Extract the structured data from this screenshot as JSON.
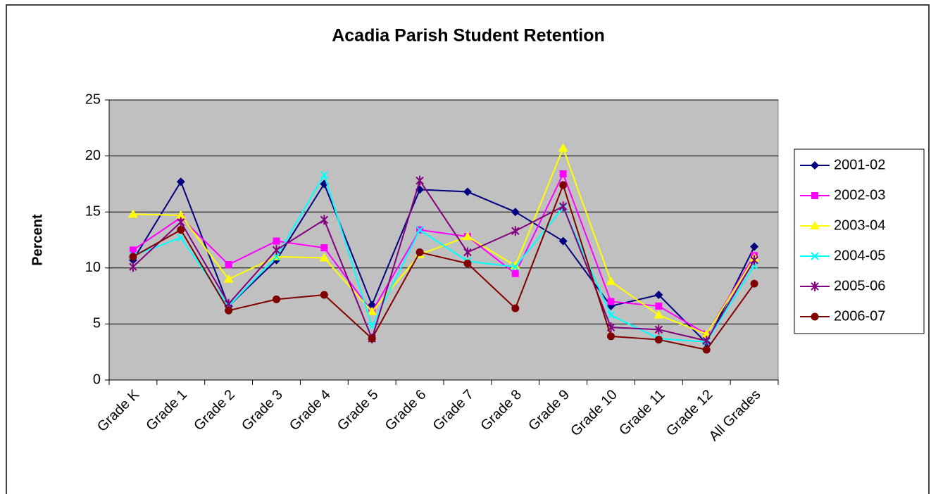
{
  "chart_data": {
    "type": "line",
    "title": "Acadia Parish Student Retention",
    "ylabel": "Percent",
    "categories": [
      "Grade K",
      "Grade 1",
      "Grade 2",
      "Grade 3",
      "Grade 4",
      "Grade 5",
      "Grade 6",
      "Grade 7",
      "Grade 8",
      "Grade 9",
      "Grade 10",
      "Grade 11",
      "Grade 12",
      "All Grades"
    ],
    "series": [
      {
        "name": "2001-02",
        "color": "#000080",
        "values": [
          10.7,
          17.7,
          6.6,
          10.7,
          17.5,
          6.7,
          17.0,
          16.8,
          15.0,
          12.4,
          6.6,
          7.6,
          3.3,
          11.9
        ]
      },
      {
        "name": "2002-03",
        "color": "#ff00ff",
        "values": [
          11.6,
          14.5,
          10.3,
          12.4,
          11.8,
          6.1,
          13.4,
          12.8,
          9.5,
          18.4,
          7.0,
          6.6,
          4.1,
          11.1
        ]
      },
      {
        "name": "2003-04",
        "color": "#ffff00",
        "values": [
          14.8,
          14.7,
          9.0,
          11.0,
          10.9,
          6.1,
          11.2,
          12.8,
          10.2,
          20.7,
          8.8,
          5.8,
          4.1,
          10.9
        ]
      },
      {
        "name": "2004-05",
        "color": "#00ffff",
        "values": [
          11.1,
          12.7,
          6.6,
          11.0,
          18.3,
          4.8,
          13.4,
          10.6,
          10.1,
          15.4,
          5.8,
          3.7,
          3.4,
          10.2
        ]
      },
      {
        "name": "2005-06",
        "color": "#800080",
        "values": [
          10.1,
          14.1,
          6.8,
          11.6,
          14.3,
          3.7,
          17.8,
          11.4,
          13.3,
          15.5,
          4.7,
          4.5,
          3.5,
          10.7
        ]
      },
      {
        "name": "2006-07",
        "color": "#800000",
        "values": [
          11.0,
          13.4,
          6.2,
          7.2,
          7.6,
          3.7,
          11.4,
          10.4,
          6.4,
          17.4,
          3.9,
          3.6,
          2.7,
          8.6
        ]
      }
    ],
    "ylim": [
      0,
      25
    ],
    "yticks": [
      0,
      5,
      10,
      15,
      20,
      25
    ],
    "grid": true,
    "legend": "right",
    "plot_color": "#c0c0c0"
  }
}
